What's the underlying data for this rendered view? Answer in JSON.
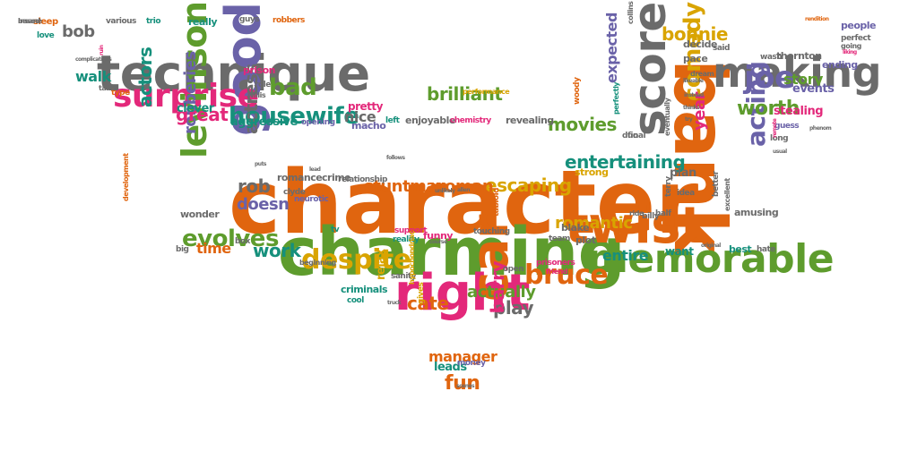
{
  "colors": {
    "orange": "#e0650f",
    "green": "#5e9c2d",
    "pink": "#e3287a",
    "purple": "#6a62a8",
    "gray": "#6b6b6b",
    "yellow": "#d9a400",
    "teal": "#16907c"
  },
  "words": [
    {
      "text": "character",
      "color": "orange",
      "size": 0.98,
      "rot": 0
    },
    {
      "text": "charming",
      "color": "green",
      "size": 0.78,
      "rot": 0
    },
    {
      "text": "technique",
      "color": "gray",
      "size": 0.58,
      "rot": 0
    },
    {
      "text": "right",
      "color": "pink",
      "size": 0.6,
      "rot": 0
    },
    {
      "text": "twist",
      "color": "orange",
      "size": 0.6,
      "rot": 0
    },
    {
      "text": "bank",
      "color": "orange",
      "size": 0.8,
      "rot": 90
    },
    {
      "text": "making",
      "color": "gray",
      "size": 0.5,
      "rot": 0
    },
    {
      "text": "score",
      "color": "gray",
      "size": 0.54,
      "rot": -90
    },
    {
      "text": "good",
      "color": "purple",
      "size": 0.6,
      "rot": -90
    },
    {
      "text": "memorable",
      "color": "green",
      "size": 0.46,
      "rot": 0
    },
    {
      "text": "car",
      "color": "orange",
      "size": 0.6,
      "rot": -90
    },
    {
      "text": "surprise",
      "color": "pink",
      "size": 0.4,
      "rot": 0
    },
    {
      "text": "levinson",
      "color": "green",
      "size": 0.4,
      "rot": -90
    },
    {
      "text": "despite",
      "color": "yellow",
      "size": 0.32,
      "rot": 0
    },
    {
      "text": "bruce",
      "color": "orange",
      "size": 0.32,
      "rot": 0
    },
    {
      "text": "housewife",
      "color": "teal",
      "size": 0.28,
      "rot": 0
    },
    {
      "text": "evolves",
      "color": "green",
      "size": 0.28,
      "rot": 0
    },
    {
      "text": "comedy",
      "color": "yellow",
      "size": 0.28,
      "rot": -90
    },
    {
      "text": "joe",
      "color": "purple",
      "size": 0.36,
      "rot": 0
    },
    {
      "text": "bad",
      "color": "green",
      "size": 0.28,
      "rot": 0
    },
    {
      "text": "acting",
      "color": "purple",
      "size": 0.3,
      "rot": -90
    },
    {
      "text": "actress",
      "color": "gray",
      "size": 0.22,
      "rot": -90
    },
    {
      "text": "actors",
      "color": "teal",
      "size": 0.22,
      "rot": -90
    },
    {
      "text": "robberies",
      "color": "purple",
      "size": 0.2,
      "rot": -90
    },
    {
      "text": "great",
      "color": "pink",
      "size": 0.22,
      "rot": 0
    },
    {
      "text": "rob",
      "color": "gray",
      "size": 0.22,
      "rot": 0
    },
    {
      "text": "doesn",
      "color": "purple",
      "size": 0.2,
      "rot": 0
    },
    {
      "text": "time",
      "color": "orange",
      "size": 0.18,
      "rot": 0
    },
    {
      "text": "work",
      "color": "teal",
      "size": 0.22,
      "rot": 0
    },
    {
      "text": "escaping",
      "color": "yellow",
      "size": 0.22,
      "rot": 0
    },
    {
      "text": "stuntman",
      "color": "orange",
      "size": 0.2,
      "rot": 0
    },
    {
      "text": "woman",
      "color": "orange",
      "size": 0.2,
      "rot": 0
    },
    {
      "text": "brilliant",
      "color": "green",
      "size": 0.22,
      "rot": 0
    },
    {
      "text": "movies",
      "color": "green",
      "size": 0.22,
      "rot": 0
    },
    {
      "text": "entertaining",
      "color": "teal",
      "size": 0.22,
      "rot": 0
    },
    {
      "text": "romantic",
      "color": "yellow",
      "size": 0.2,
      "rot": 0
    },
    {
      "text": "actually",
      "color": "green",
      "size": 0.2,
      "rot": 0
    },
    {
      "text": "play",
      "color": "gray",
      "size": 0.22,
      "rot": 0
    },
    {
      "text": "cate",
      "color": "orange",
      "size": 0.22,
      "rot": 0
    },
    {
      "text": "barry",
      "color": "pink",
      "size": 0.22,
      "rot": -90
    },
    {
      "text": "fun",
      "color": "orange",
      "size": 0.24,
      "rot": 0
    },
    {
      "text": "manager",
      "color": "orange",
      "size": 0.18,
      "rot": 0
    },
    {
      "text": "leads",
      "color": "teal",
      "size": 0.14,
      "rot": 0
    },
    {
      "text": "relax",
      "color": "yellow",
      "size": 0.14,
      "rot": -90
    },
    {
      "text": "worth",
      "color": "green",
      "size": 0.24,
      "rot": 0
    },
    {
      "text": "story",
      "color": "green",
      "size": 0.18,
      "rot": 0
    },
    {
      "text": "year",
      "color": "pink",
      "size": 0.2,
      "rot": -90
    },
    {
      "text": "bonnie",
      "color": "yellow",
      "size": 0.22,
      "rot": 0
    },
    {
      "text": "entire",
      "color": "teal",
      "size": 0.18,
      "rot": 0
    },
    {
      "text": "want",
      "color": "teal",
      "size": 0.14,
      "rot": 0
    },
    {
      "text": "nice",
      "color": "gray",
      "size": 0.18,
      "rot": 0
    },
    {
      "text": "pretty",
      "color": "pink",
      "size": 0.14,
      "rot": 0
    },
    {
      "text": "macho",
      "color": "purple",
      "size": 0.12,
      "rot": 0
    },
    {
      "text": "aggressive",
      "color": "teal",
      "size": 0.14,
      "rot": 0
    },
    {
      "text": "clever",
      "color": "teal",
      "size": 0.14,
      "rot": 0
    },
    {
      "text": "walk",
      "color": "teal",
      "size": 0.18,
      "rot": 0
    },
    {
      "text": "bob",
      "color": "gray",
      "size": 0.2,
      "rot": 0
    },
    {
      "text": "sleep",
      "color": "orange",
      "size": 0.1,
      "rot": 0
    },
    {
      "text": "love",
      "color": "teal",
      "size": 0.1,
      "rot": 0
    },
    {
      "text": "various",
      "color": "gray",
      "size": 0.1,
      "rot": 0
    },
    {
      "text": "trio",
      "color": "teal",
      "size": 0.1,
      "rot": 0
    },
    {
      "text": "really",
      "color": "teal",
      "size": 0.12,
      "rot": 0
    },
    {
      "text": "guys",
      "color": "gray",
      "size": 0.1,
      "rot": 0
    },
    {
      "text": "robbers",
      "color": "orange",
      "size": 0.1,
      "rot": 0
    },
    {
      "text": "prison",
      "color": "pink",
      "size": 0.12,
      "rot": 0
    },
    {
      "text": "role",
      "color": "gray",
      "size": 0.1,
      "rot": 0
    },
    {
      "text": "willis",
      "color": "gray",
      "size": 0.08,
      "rot": 0
    },
    {
      "text": "type",
      "color": "orange",
      "size": 0.1,
      "rot": 0
    },
    {
      "text": "opening",
      "color": "purple",
      "size": 0.1,
      "rot": 0
    },
    {
      "text": "left",
      "color": "teal",
      "size": 0.1,
      "rot": 0
    },
    {
      "text": "enjoyable",
      "color": "gray",
      "size": 0.12,
      "rot": 0
    },
    {
      "text": "chemistry",
      "color": "pink",
      "size": 0.1,
      "rot": 0
    },
    {
      "text": "revealing",
      "color": "gray",
      "size": 0.12,
      "rot": 0
    },
    {
      "text": "duo",
      "color": "gray",
      "size": 0.1,
      "rot": 0
    },
    {
      "text": "performance",
      "color": "yellow",
      "size": 0.08,
      "rot": 0
    },
    {
      "text": "expected",
      "color": "purple",
      "size": 0.18,
      "rot": -90
    },
    {
      "text": "perfectly",
      "color": "teal",
      "size": 0.08,
      "rot": -90
    },
    {
      "text": "woody",
      "color": "orange",
      "size": 0.1,
      "rot": -90
    },
    {
      "text": "final",
      "color": "gray",
      "size": 0.1,
      "rot": 0
    },
    {
      "text": "strong",
      "color": "yellow",
      "size": 0.12,
      "rot": 0
    },
    {
      "text": "plan",
      "color": "gray",
      "size": 0.14,
      "rot": 0
    },
    {
      "text": "terry",
      "color": "gray",
      "size": 0.1,
      "rot": -90
    },
    {
      "text": "idea",
      "color": "gray",
      "size": 0.1,
      "rot": 0
    },
    {
      "text": "ride",
      "color": "gray",
      "size": 0.08,
      "rot": 0
    },
    {
      "text": "billy",
      "color": "gray",
      "size": 0.1,
      "rot": 0
    },
    {
      "text": "half",
      "color": "gray",
      "size": 0.1,
      "rot": 0
    },
    {
      "text": "amusing",
      "color": "gray",
      "size": 0.12,
      "rot": 0
    },
    {
      "text": "better",
      "color": "gray",
      "size": 0.1,
      "rot": -90
    },
    {
      "text": "excellent",
      "color": "gray",
      "size": 0.08,
      "rot": -90
    },
    {
      "text": "best",
      "color": "teal",
      "size": 0.12,
      "rot": 0
    },
    {
      "text": "hate",
      "color": "gray",
      "size": 0.1,
      "rot": 0
    },
    {
      "text": "events",
      "color": "purple",
      "size": 0.14,
      "rot": 0
    },
    {
      "text": "stealing",
      "color": "pink",
      "size": 0.14,
      "rot": 0
    },
    {
      "text": "guess",
      "color": "purple",
      "size": 0.1,
      "rot": 0
    },
    {
      "text": "long",
      "color": "gray",
      "size": 0.1,
      "rot": 0
    },
    {
      "text": "eventually",
      "color": "gray",
      "size": 0.08,
      "rot": -90
    },
    {
      "text": "thornton",
      "color": "gray",
      "size": 0.12,
      "rot": 0
    },
    {
      "text": "ending",
      "color": "purple",
      "size": 0.12,
      "rot": 0
    },
    {
      "text": "pace",
      "color": "gray",
      "size": 0.12,
      "rot": 0
    },
    {
      "text": "decide",
      "color": "gray",
      "size": 0.12,
      "rot": 0
    },
    {
      "text": "said",
      "color": "gray",
      "size": 0.1,
      "rot": 0
    },
    {
      "text": "people",
      "color": "purple",
      "size": 0.12,
      "rot": 0
    },
    {
      "text": "perfect",
      "color": "gray",
      "size": 0.1,
      "rot": 0
    },
    {
      "text": "going",
      "color": "gray",
      "size": 0.08,
      "rot": 0
    },
    {
      "text": "wasn",
      "color": "gray",
      "size": 0.1,
      "rot": 0
    },
    {
      "text": "dream",
      "color": "gray",
      "size": 0.08,
      "rot": 0
    },
    {
      "text": "collins",
      "color": "gray",
      "size": 0.08,
      "rot": -90
    },
    {
      "text": "romance",
      "color": "gray",
      "size": 0.12,
      "rot": 0
    },
    {
      "text": "clyde",
      "color": "gray",
      "size": 0.1,
      "rot": 0
    },
    {
      "text": "crime",
      "color": "gray",
      "size": 0.12,
      "rot": 0
    },
    {
      "text": "relationship",
      "color": "gray",
      "size": 0.1,
      "rot": 0
    },
    {
      "text": "neurotic",
      "color": "purple",
      "size": 0.1,
      "rot": 0
    },
    {
      "text": "wonder",
      "color": "gray",
      "size": 0.12,
      "rot": 0
    },
    {
      "text": "box",
      "color": "gray",
      "size": 0.1,
      "rot": 0
    },
    {
      "text": "big",
      "color": "gray",
      "size": 0.1,
      "rot": 0
    },
    {
      "text": "tv",
      "color": "teal",
      "size": 0.1,
      "rot": 0
    },
    {
      "text": "funny",
      "color": "pink",
      "size": 0.12,
      "rot": 0
    },
    {
      "text": "touching",
      "color": "gray",
      "size": 0.1,
      "rot": 0
    },
    {
      "text": "support",
      "color": "pink",
      "size": 0.1,
      "rot": 0
    },
    {
      "text": "reality",
      "color": "teal",
      "size": 0.1,
      "rot": 0
    },
    {
      "text": "beginning",
      "color": "gray",
      "size": 0.08,
      "rot": 0
    },
    {
      "text": "criminals",
      "color": "teal",
      "size": 0.12,
      "rot": 0
    },
    {
      "text": "cool",
      "color": "teal",
      "size": 0.1,
      "rot": 0
    },
    {
      "text": "sanity",
      "color": "gray",
      "size": 0.1,
      "rot": 0
    },
    {
      "text": "open",
      "color": "gray",
      "size": 0.1,
      "rot": 0
    },
    {
      "text": "prisoners",
      "color": "pink",
      "size": 0.1,
      "rot": 0
    },
    {
      "text": "friend",
      "color": "pink",
      "size": 0.08,
      "rot": 0
    },
    {
      "text": "blake",
      "color": "gray",
      "size": 0.12,
      "rot": 0
    },
    {
      "text": "team",
      "color": "gray",
      "size": 0.1,
      "rot": 0
    },
    {
      "text": "plot",
      "color": "gray",
      "size": 0.12,
      "rot": 0
    },
    {
      "text": "tabloid",
      "color": "orange",
      "size": 0.1,
      "rot": -90
    },
    {
      "text": "hypochondriac",
      "color": "yellow",
      "size": 0.08,
      "rot": -90
    },
    {
      "text": "gives",
      "color": "yellow",
      "size": 0.1,
      "rot": -90
    },
    {
      "text": "money",
      "color": "purple",
      "size": 0.1,
      "rot": 0
    },
    {
      "text": "development",
      "color": "orange",
      "size": 0.08,
      "rot": -90
    },
    {
      "text": "complications",
      "color": "gray",
      "size": 0.06,
      "rot": 0
    },
    {
      "text": "ruin",
      "color": "pink",
      "size": 0.08,
      "rot": -90
    },
    {
      "text": "takes",
      "color": "gray",
      "size": 0.06,
      "rot": 0
    },
    {
      "text": "rendition",
      "color": "orange",
      "size": 0.06,
      "rot": 0
    },
    {
      "text": "liking",
      "color": "pink",
      "size": 0.06,
      "rot": 0
    },
    {
      "text": "likeable",
      "color": "gray",
      "size": 0.06,
      "rot": 0
    },
    {
      "text": "instead",
      "color": "gray",
      "size": 0.06,
      "rot": 0
    },
    {
      "text": "thinks",
      "color": "gray",
      "size": 0.06,
      "rot": 0
    },
    {
      "text": "usual",
      "color": "gray",
      "size": 0.06,
      "rot": 0
    },
    {
      "text": "lead",
      "color": "gray",
      "size": 0.06,
      "rot": 0
    },
    {
      "text": "follows",
      "color": "gray",
      "size": 0.06,
      "rot": 0
    },
    {
      "text": "puts",
      "color": "gray",
      "size": 0.06,
      "rot": 0
    },
    {
      "text": "unlikely",
      "color": "gray",
      "size": 0.06,
      "rot": 0
    },
    {
      "text": "allen",
      "color": "gray",
      "size": 0.06,
      "rot": 0
    },
    {
      "text": "course",
      "color": "gray",
      "size": 0.06,
      "rot": 0
    },
    {
      "text": "original",
      "color": "gray",
      "size": 0.06,
      "rot": 0
    },
    {
      "text": "scenes",
      "color": "gray",
      "size": 0.06,
      "rot": 0
    },
    {
      "text": "truck",
      "color": "gray",
      "size": 0.06,
      "rot": 0
    },
    {
      "text": "man",
      "color": "pink",
      "size": 0.06,
      "rot": 0
    },
    {
      "text": "remote",
      "color": "pink",
      "size": 0.06,
      "rot": -90
    },
    {
      "text": "phenom",
      "color": "gray",
      "size": 0.06,
      "rot": 0
    },
    {
      "text": "try",
      "color": "gray",
      "size": 0.06,
      "rot": 0
    },
    {
      "text": "insane",
      "color": "gray",
      "size": 0.06,
      "rot": 0
    },
    {
      "text": "based",
      "color": "gray",
      "size": 0.06,
      "rot": 0
    }
  ]
}
